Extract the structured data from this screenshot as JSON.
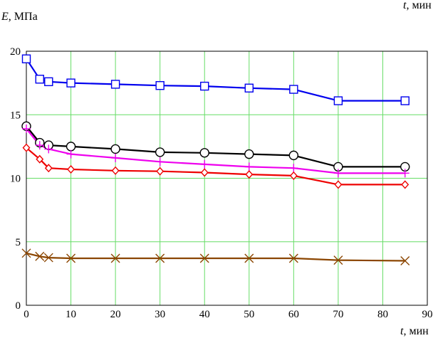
{
  "chart_data": {
    "type": "line",
    "ylabel_var": "E",
    "ylabel_unit": ", МПа",
    "xlabel_var": "t",
    "xlabel_unit": ", мин",
    "xlim": [
      0,
      90
    ],
    "ylim": [
      0,
      20
    ],
    "x_ticks": [
      0,
      10,
      20,
      30,
      40,
      50,
      60,
      70,
      80,
      90
    ],
    "y_ticks": [
      0,
      5,
      10,
      15,
      20
    ],
    "grid": true,
    "grid_color": "#66dd66",
    "series": [
      {
        "color": "#0000ee",
        "marker": "square",
        "x": [
          0,
          3,
          5,
          10,
          20,
          30,
          40,
          50,
          60,
          70,
          85
        ],
        "y": [
          19.4,
          17.8,
          17.6,
          17.5,
          17.4,
          17.3,
          17.25,
          17.1,
          17.0,
          16.1,
          16.1
        ]
      },
      {
        "color": "#000000",
        "marker": "circle",
        "x": [
          0,
          3,
          5,
          10,
          20,
          30,
          40,
          50,
          60,
          70,
          85
        ],
        "y": [
          14.1,
          12.8,
          12.6,
          12.5,
          12.3,
          12.05,
          12.0,
          11.9,
          11.8,
          10.9,
          10.9
        ]
      },
      {
        "color": "#ee00ee",
        "marker": "plus",
        "x": [
          0,
          3,
          5,
          10,
          20,
          30,
          40,
          50,
          60,
          70,
          85
        ],
        "y": [
          13.9,
          12.6,
          12.3,
          11.9,
          11.6,
          11.3,
          11.1,
          10.9,
          10.8,
          10.4,
          10.4
        ]
      },
      {
        "color": "#ee0000",
        "marker": "diamond",
        "x": [
          0,
          3,
          5,
          10,
          20,
          30,
          40,
          50,
          60,
          70,
          85
        ],
        "y": [
          12.4,
          11.5,
          10.8,
          10.7,
          10.6,
          10.55,
          10.45,
          10.3,
          10.2,
          9.5,
          9.5
        ]
      },
      {
        "color": "#8b4500",
        "marker": "cross",
        "x": [
          0,
          3,
          5,
          10,
          20,
          30,
          40,
          50,
          60,
          70,
          85
        ],
        "y": [
          4.1,
          3.85,
          3.75,
          3.7,
          3.7,
          3.7,
          3.7,
          3.7,
          3.7,
          3.55,
          3.5
        ]
      }
    ]
  }
}
